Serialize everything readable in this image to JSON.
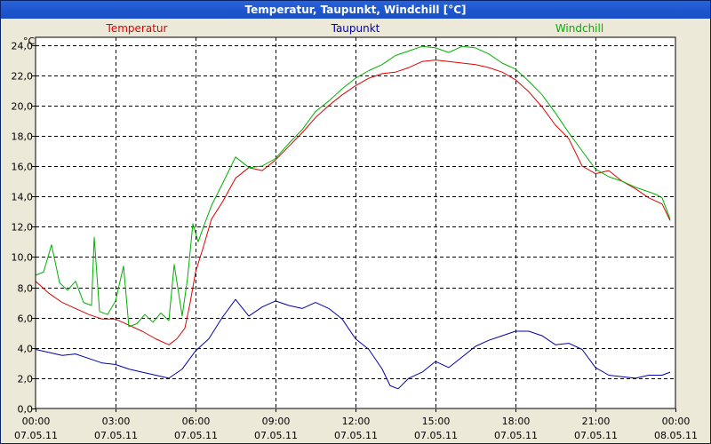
{
  "window": {
    "title": "Temperatur, Taupunkt, Windchill [°C]"
  },
  "colors": {
    "temperatur": "#e00000",
    "taupunkt": "#0000b0",
    "windchill": "#00b000",
    "grid": "#000000",
    "plot_bg": "#ffffff"
  },
  "chart_data": {
    "type": "line",
    "title": "Temperatur, Taupunkt, Windchill [°C]",
    "ylabel": "°C",
    "xlabel": "",
    "ylim": [
      0,
      24.5
    ],
    "xlim": [
      0,
      24
    ],
    "y_ticks": [
      "0,0",
      "2,0",
      "4,0",
      "6,0",
      "8,0",
      "10,0",
      "12,0",
      "14,0",
      "16,0",
      "18,0",
      "20,0",
      "22,0",
      "24,0"
    ],
    "y_tick_values": [
      0,
      2,
      4,
      6,
      8,
      10,
      12,
      14,
      16,
      18,
      20,
      22,
      24
    ],
    "x_ticks": [
      {
        "time": "00:00",
        "date": "07.05.11"
      },
      {
        "time": "03:00",
        "date": "07.05.11"
      },
      {
        "time": "06:00",
        "date": "07.05.11"
      },
      {
        "time": "09:00",
        "date": "07.05.11"
      },
      {
        "time": "12:00",
        "date": "07.05.11"
      },
      {
        "time": "15:00",
        "date": "07.05.11"
      },
      {
        "time": "18:00",
        "date": "07.05.11"
      },
      {
        "time": "21:00",
        "date": "07.05.11"
      },
      {
        "time": "00:00",
        "date": "08.05.11"
      }
    ],
    "x_tick_values": [
      0,
      3,
      6,
      9,
      12,
      15,
      18,
      21,
      24
    ],
    "grid": true,
    "legend_position": "top",
    "series": [
      {
        "name": "Temperatur",
        "color": "#e00000",
        "x": [
          0,
          0.5,
          1,
          1.5,
          2,
          2.5,
          3,
          3.5,
          4,
          4.5,
          5,
          5.3,
          5.6,
          5.8,
          6,
          6.3,
          6.6,
          7,
          7.5,
          8,
          8.5,
          9,
          9.5,
          10,
          10.5,
          11,
          11.5,
          12,
          12.5,
          13,
          13.5,
          14,
          14.5,
          15,
          15.5,
          16,
          16.5,
          17,
          17.5,
          18,
          18.5,
          19,
          19.5,
          20,
          20.5,
          21,
          21.5,
          22,
          22.5,
          23,
          23.5,
          23.8
        ],
        "values": [
          8.4,
          7.6,
          7.0,
          6.6,
          6.2,
          5.9,
          5.9,
          5.5,
          5.1,
          4.6,
          4.2,
          4.6,
          5.3,
          7.0,
          9.0,
          10.7,
          12.5,
          13.6,
          15.2,
          15.9,
          15.7,
          16.4,
          17.3,
          18.2,
          19.2,
          20.0,
          20.7,
          21.3,
          21.8,
          22.1,
          22.2,
          22.5,
          22.9,
          23.0,
          22.9,
          22.8,
          22.7,
          22.5,
          22.2,
          21.7,
          20.9,
          19.9,
          18.7,
          17.8,
          16.0,
          15.5,
          15.7,
          15.0,
          14.5,
          13.9,
          13.5,
          12.4
        ]
      },
      {
        "name": "Taupunkt",
        "color": "#0000b0",
        "x": [
          0,
          0.5,
          1,
          1.5,
          2,
          2.5,
          3,
          3.5,
          4,
          4.5,
          5,
          5.5,
          6,
          6.5,
          7,
          7.5,
          8,
          8.5,
          9,
          9.5,
          10,
          10.5,
          11,
          11.5,
          12,
          12.5,
          13,
          13.3,
          13.6,
          14,
          14.5,
          15,
          15.5,
          16,
          16.5,
          17,
          17.5,
          18,
          18.5,
          19,
          19.5,
          20,
          20.5,
          21,
          21.5,
          22,
          22.5,
          23,
          23.5,
          23.8
        ],
        "values": [
          3.9,
          3.7,
          3.5,
          3.6,
          3.3,
          3.0,
          2.9,
          2.6,
          2.4,
          2.2,
          2.0,
          2.6,
          3.8,
          4.6,
          6.0,
          7.2,
          6.1,
          6.7,
          7.1,
          6.8,
          6.6,
          7.0,
          6.6,
          5.9,
          4.6,
          3.9,
          2.6,
          1.5,
          1.3,
          2.0,
          2.4,
          3.1,
          2.7,
          3.4,
          4.1,
          4.5,
          4.8,
          5.1,
          5.1,
          4.8,
          4.2,
          4.3,
          3.9,
          2.7,
          2.2,
          2.1,
          2.0,
          2.2,
          2.2,
          2.4
        ]
      },
      {
        "name": "Windchill",
        "color": "#00b000",
        "x": [
          0,
          0.3,
          0.6,
          0.9,
          1.2,
          1.5,
          1.8,
          2.1,
          2.2,
          2.4,
          2.7,
          3.0,
          3.3,
          3.5,
          3.8,
          4.1,
          4.4,
          4.7,
          5.0,
          5.2,
          5.5,
          5.7,
          5.9,
          6.1,
          6.3,
          6.6,
          7.0,
          7.5,
          8.0,
          8.5,
          9.0,
          9.5,
          10.0,
          10.5,
          11.0,
          11.5,
          12.0,
          12.5,
          13.0,
          13.5,
          14.0,
          14.5,
          15.0,
          15.5,
          16.0,
          16.5,
          17.0,
          17.5,
          18.0,
          18.5,
          19.0,
          19.5,
          20.0,
          20.5,
          21.0,
          21.5,
          22.0,
          22.5,
          23.0,
          23.3,
          23.5,
          23.8
        ],
        "values": [
          8.8,
          9.0,
          10.8,
          8.3,
          7.8,
          8.4,
          7.0,
          6.8,
          11.3,
          6.4,
          6.2,
          7.1,
          9.4,
          5.4,
          5.6,
          6.2,
          5.7,
          6.3,
          5.8,
          9.5,
          6.1,
          8.6,
          12.2,
          11.0,
          12.0,
          13.4,
          14.8,
          16.6,
          15.9,
          16.0,
          16.5,
          17.5,
          18.4,
          19.6,
          20.3,
          21.1,
          21.8,
          22.3,
          22.7,
          23.3,
          23.6,
          23.9,
          23.8,
          23.5,
          23.9,
          23.8,
          23.4,
          22.8,
          22.4,
          21.6,
          20.7,
          19.5,
          18.2,
          17.0,
          15.8,
          15.3,
          15.0,
          14.6,
          14.3,
          14.1,
          13.9,
          12.5
        ]
      }
    ]
  }
}
